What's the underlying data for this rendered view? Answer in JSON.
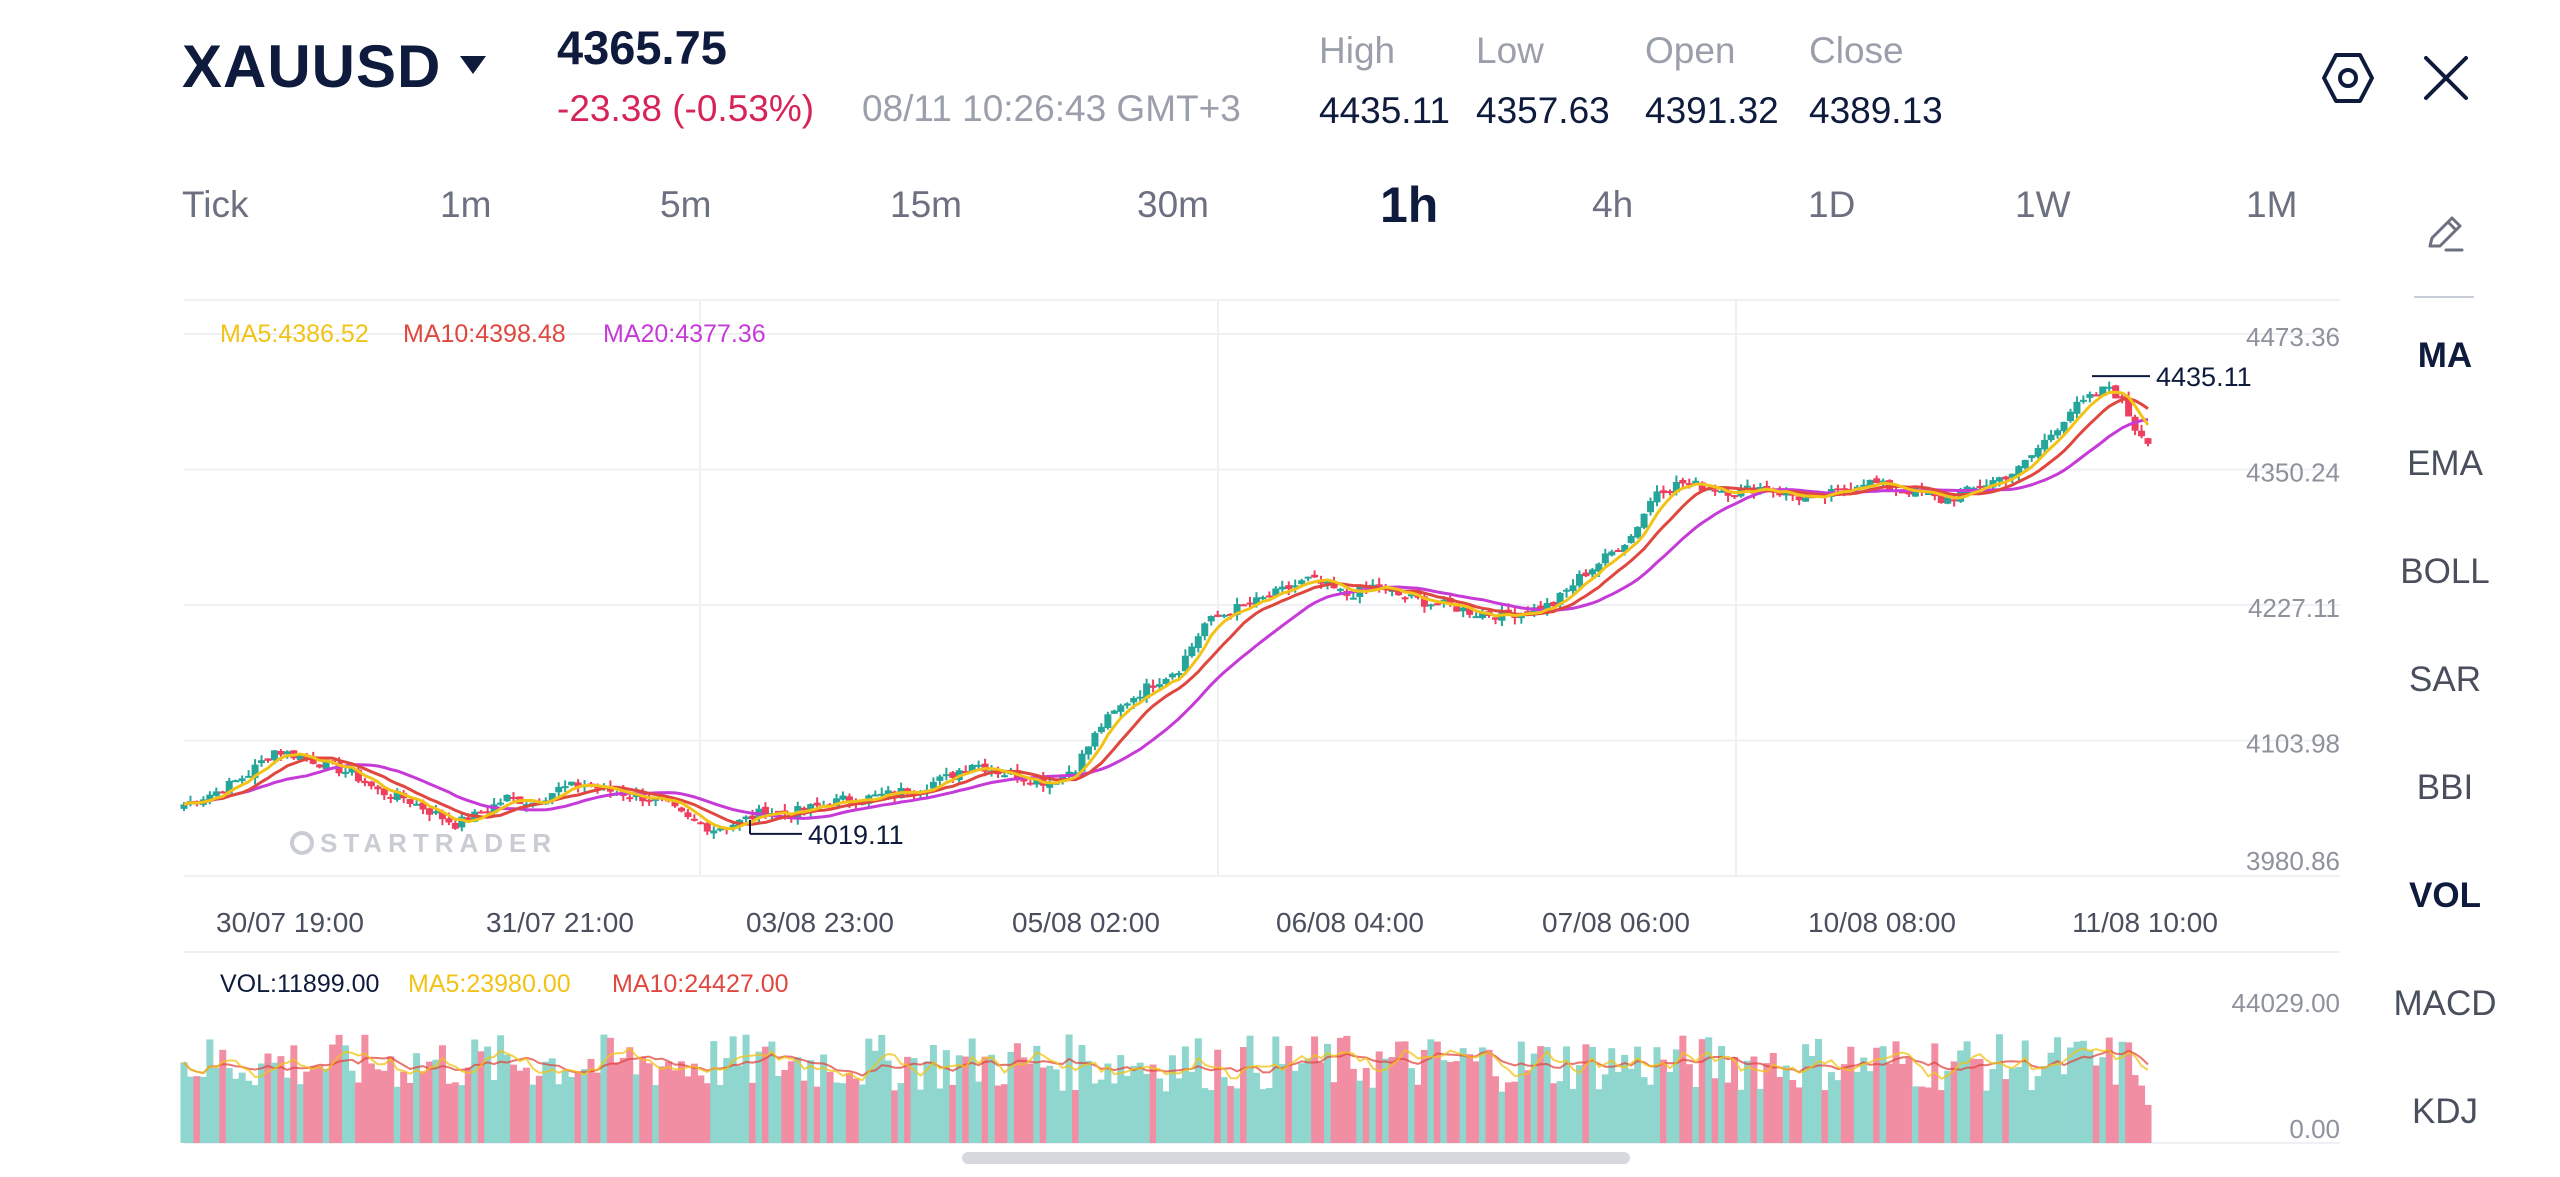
{
  "header": {
    "symbol": "XAUUSD",
    "price": "4365.75",
    "change": "-23.38 (-0.53%)",
    "timestamp": "08/11 10:26:43 GMT+3",
    "stats": [
      {
        "label": "High",
        "value": "4435.11"
      },
      {
        "label": "Low",
        "value": "4357.63"
      },
      {
        "label": "Open",
        "value": "4391.32"
      },
      {
        "label": "Close",
        "value": "4389.13"
      }
    ],
    "icons": {
      "settings": "gear-hexagon-icon",
      "close": "close-icon"
    }
  },
  "timeframes": {
    "items": [
      "Tick",
      "1m",
      "5m",
      "15m",
      "30m",
      "1h",
      "4h",
      "1D",
      "1W",
      "1M"
    ],
    "active": "1h"
  },
  "indicators": {
    "draw_icon": "pencil-draw-icon",
    "items": [
      "MA",
      "EMA",
      "BOLL",
      "SAR",
      "BBI",
      "VOL",
      "MACD",
      "KDJ"
    ],
    "active": [
      "MA",
      "VOL"
    ]
  },
  "chart_data": {
    "type": "candlestick",
    "watermark": "STARTRADER",
    "ma_legend": {
      "ma5": "MA5:4386.52",
      "ma10": "MA10:4398.48",
      "ma20": "MA20:4377.36"
    },
    "vol_legend": {
      "vol": "VOL:11899.00",
      "ma5": "MA5:23980.00",
      "ma10": "MA10:24427.00"
    },
    "y_ticks": [
      "4473.36",
      "4350.24",
      "4227.11",
      "4103.98",
      "3980.86"
    ],
    "vol_ticks": [
      "44029.00",
      "0.00"
    ],
    "x_ticks": [
      "30/07 19:00",
      "31/07 21:00",
      "03/08 23:00",
      "05/08 02:00",
      "06/08 04:00",
      "07/08 06:00",
      "10/08 08:00",
      "11/08 10:00"
    ],
    "ylim": [
      3980.86,
      4473.36
    ],
    "vol_ylim": [
      0,
      44029
    ],
    "high_label": "4435.11",
    "low_label": "4019.11",
    "close_path": [
      [
        0,
        4046
      ],
      [
        6,
        4060
      ],
      [
        10,
        4074
      ],
      [
        14,
        4095
      ],
      [
        18,
        4090
      ],
      [
        22,
        4082
      ],
      [
        26,
        4074
      ],
      [
        30,
        4058
      ],
      [
        34,
        4052
      ],
      [
        38,
        4040
      ],
      [
        42,
        4028
      ],
      [
        46,
        4038
      ],
      [
        50,
        4052
      ],
      [
        54,
        4048
      ],
      [
        58,
        4060
      ],
      [
        62,
        4064
      ],
      [
        66,
        4058
      ],
      [
        70,
        4054
      ],
      [
        74,
        4048
      ],
      [
        78,
        4032
      ],
      [
        82,
        4024
      ],
      [
        86,
        4030
      ],
      [
        90,
        4040
      ],
      [
        94,
        4038
      ],
      [
        98,
        4044
      ],
      [
        102,
        4050
      ],
      [
        106,
        4052
      ],
      [
        110,
        4056
      ],
      [
        114,
        4062
      ],
      [
        118,
        4070
      ],
      [
        122,
        4084
      ],
      [
        126,
        4076
      ],
      [
        130,
        4070
      ],
      [
        134,
        4066
      ],
      [
        138,
        4080
      ],
      [
        142,
        4118
      ],
      [
        146,
        4140
      ],
      [
        150,
        4156
      ],
      [
        154,
        4170
      ],
      [
        158,
        4210
      ],
      [
        162,
        4222
      ],
      [
        166,
        4230
      ],
      [
        170,
        4240
      ],
      [
        174,
        4250
      ],
      [
        176,
        4246
      ],
      [
        180,
        4236
      ],
      [
        184,
        4244
      ],
      [
        188,
        4236
      ],
      [
        192,
        4230
      ],
      [
        196,
        4226
      ],
      [
        200,
        4220
      ],
      [
        204,
        4218
      ],
      [
        208,
        4222
      ],
      [
        212,
        4228
      ],
      [
        216,
        4252
      ],
      [
        220,
        4270
      ],
      [
        224,
        4290
      ],
      [
        228,
        4332
      ],
      [
        232,
        4338
      ],
      [
        236,
        4334
      ],
      [
        240,
        4330
      ],
      [
        244,
        4334
      ],
      [
        248,
        4328
      ],
      [
        252,
        4322
      ],
      [
        256,
        4330
      ],
      [
        260,
        4340
      ],
      [
        264,
        4334
      ],
      [
        268,
        4330
      ],
      [
        272,
        4322
      ],
      [
        276,
        4330
      ],
      [
        280,
        4340
      ],
      [
        284,
        4350
      ],
      [
        288,
        4376
      ],
      [
        292,
        4404
      ],
      [
        296,
        4418
      ],
      [
        298,
        4426
      ],
      [
        300,
        4412
      ],
      [
        302,
        4388
      ],
      [
        304,
        4378
      ]
    ],
    "candles": 305
  }
}
